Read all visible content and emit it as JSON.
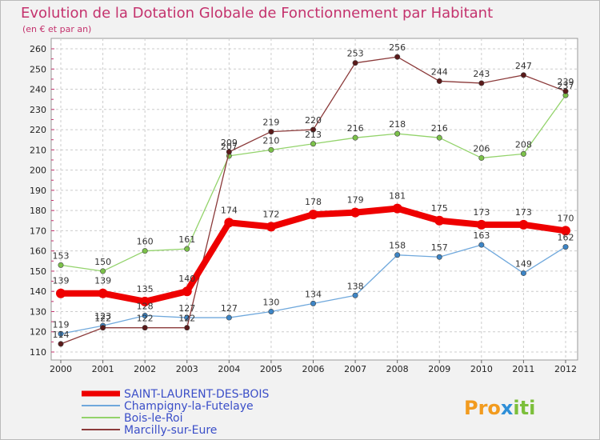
{
  "chart_data": {
    "type": "line",
    "title": "Evolution de la Dotation Globale de Fonctionnement par Habitant",
    "subtitle": "(en € et par an)",
    "x": [
      "2000",
      "2001",
      "2002",
      "2003",
      "2004",
      "2005",
      "2006",
      "2007",
      "2008",
      "2009",
      "2010",
      "2011",
      "2012"
    ],
    "ylim": [
      110,
      260
    ],
    "yticks": [
      110,
      120,
      130,
      140,
      150,
      160,
      170,
      180,
      190,
      200,
      210,
      220,
      230,
      240,
      250,
      260
    ],
    "grid": true,
    "legend": "bottom-left",
    "series": [
      {
        "name": "SAINT-LAURENT-DES-BOIS",
        "color": "#ee0000",
        "values": [
          139,
          139,
          135,
          140,
          174,
          172,
          178,
          179,
          181,
          175,
          173,
          173,
          170
        ]
      },
      {
        "name": "Champigny-la-Futelaye",
        "color": "#6fa8dc",
        "values": [
          119,
          123,
          128,
          127,
          127,
          130,
          134,
          138,
          158,
          157,
          163,
          149,
          162
        ]
      },
      {
        "name": "Bois-le-Roi",
        "color": "#93d36b",
        "values": [
          153,
          150,
          160,
          161,
          207,
          210,
          213,
          216,
          218,
          216,
          206,
          208,
          237
        ]
      },
      {
        "name": "Marcilly-sur-Eure",
        "color": "#8b3a3a",
        "values": [
          114,
          122,
          122,
          122,
          209,
          219,
          220,
          253,
          256,
          244,
          243,
          247,
          239
        ]
      }
    ]
  },
  "logo": {
    "text_a": "Pro",
    "text_b": "x",
    "text_c": "iti"
  }
}
